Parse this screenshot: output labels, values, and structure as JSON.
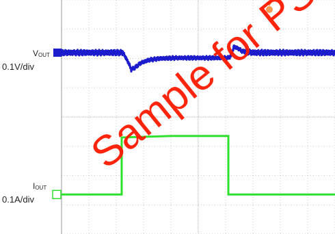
{
  "labels": {
    "vout_name": "V",
    "vout_sub": "OUT",
    "vout_scale": "0.1V/div",
    "iout_name": "I",
    "iout_sub": "OUT",
    "iout_scale": "0.1A/div"
  },
  "watermark": "Sample for PST",
  "colors": {
    "vout": "#1c1ccc",
    "iout": "#2ee02e",
    "grid": "#c8c8c8",
    "trigger": "#f08a3a",
    "watermark": "#ff1a00"
  },
  "chart_data": {
    "type": "line",
    "title": "",
    "xlabel": "",
    "ylabel": "",
    "grid": true,
    "divisions": {
      "x": 10,
      "y": 8
    },
    "xlim": [
      0,
      10
    ],
    "ylim": [
      0,
      8
    ],
    "series": [
      {
        "name": "VOUT",
        "scale": "0.1V/div",
        "ground_div": 6.2,
        "points": [
          [
            0,
            6.2
          ],
          [
            2.25,
            6.2
          ],
          [
            2.45,
            5.85
          ],
          [
            2.55,
            5.62
          ],
          [
            2.7,
            5.7
          ],
          [
            2.9,
            5.85
          ],
          [
            3.2,
            5.95
          ],
          [
            3.6,
            6.0
          ],
          [
            4.2,
            6.02
          ],
          [
            5.0,
            6.02
          ],
          [
            6.1,
            6.02
          ],
          [
            6.2,
            6.1
          ],
          [
            6.3,
            6.4
          ],
          [
            6.45,
            6.35
          ],
          [
            6.6,
            6.25
          ],
          [
            7.0,
            6.2
          ],
          [
            10,
            6.2
          ]
        ]
      },
      {
        "name": "IOUT",
        "scale": "0.1A/div",
        "ground_div": 1.35,
        "points": [
          [
            0,
            1.35
          ],
          [
            2.2,
            1.35
          ],
          [
            2.2,
            3.3
          ],
          [
            4.0,
            3.35
          ],
          [
            6.1,
            3.35
          ],
          [
            6.1,
            1.35
          ],
          [
            10,
            1.35
          ]
        ]
      }
    ]
  }
}
